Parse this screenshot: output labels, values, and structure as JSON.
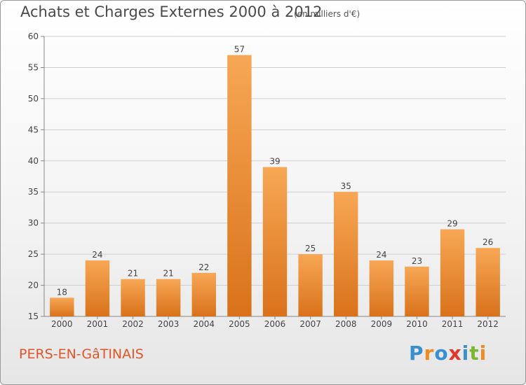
{
  "title": "Achats et Charges Externes 2000 à 2012",
  "subtitle": "(en milliers d'€)",
  "city": "PERS-EN-GâTINAIS",
  "logo": {
    "text": "Proxiti",
    "letters": [
      {
        "char": "P",
        "color": "#3a8fd1"
      },
      {
        "char": "r",
        "color": "#f08a24"
      },
      {
        "char": "o",
        "color": "#3a8fd1"
      },
      {
        "char": "x",
        "color": "#e2352b"
      },
      {
        "char": "i",
        "color": "#3a8fd1"
      },
      {
        "char": "t",
        "color": "#7cb832"
      },
      {
        "char": "i",
        "color": "#f08a24"
      }
    ]
  },
  "colors": {
    "bar_light": "#f7a755",
    "bar_dark": "#d9721a",
    "grid": "#cfcfcf"
  },
  "chart_data": {
    "type": "bar",
    "categories": [
      "2000",
      "2001",
      "2002",
      "2003",
      "2004",
      "2005",
      "2006",
      "2007",
      "2008",
      "2009",
      "2010",
      "2011",
      "2012"
    ],
    "values": [
      18,
      24,
      21,
      21,
      22,
      57,
      39,
      25,
      35,
      24,
      23,
      29,
      26
    ],
    "ylim": [
      15,
      60
    ],
    "yticks": [
      15,
      20,
      25,
      30,
      35,
      40,
      45,
      50,
      55,
      60
    ],
    "grid": true
  }
}
